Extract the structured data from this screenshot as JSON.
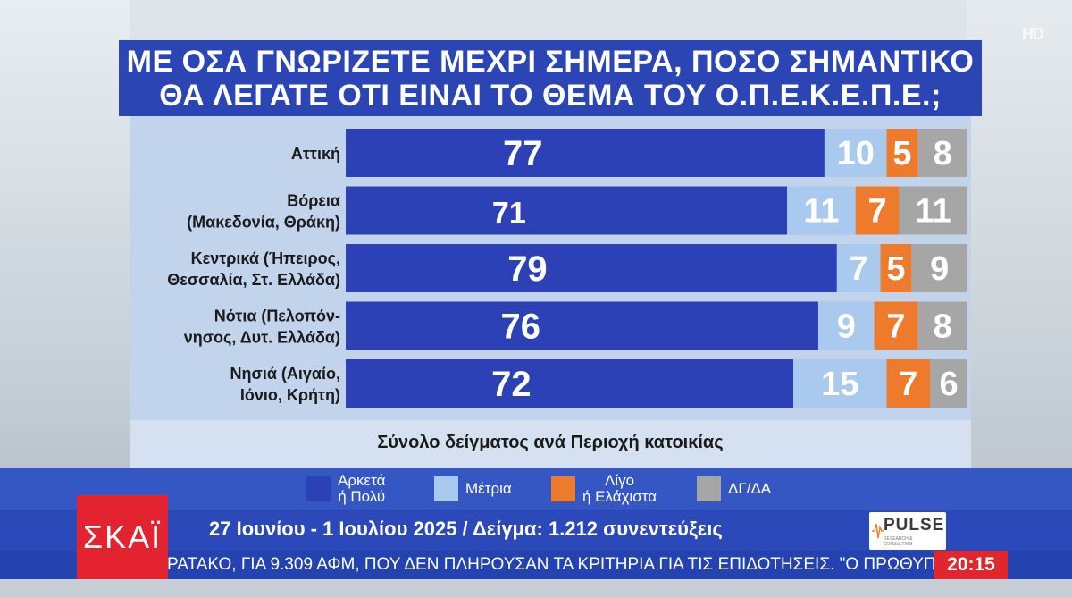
{
  "title_lines": [
    "ΜΕ ΟΣΑ ΓΝΩΡΙΖΕΤΕ ΜΕΧΡΙ ΣΗΜΕΡΑ, ΠΟΣΟ ΣΗΜΑΝΤΙΚΟ",
    "ΘΑ ΛΕΓΑΤΕ ΟΤΙ ΕΙΝΑΙ ΤΟ ΘΕΜΑ ΤΟΥ Ο.Π.Ε.Κ.Ε.Π.Ε.;"
  ],
  "hd_badge": "HD",
  "chart_data": {
    "type": "bar",
    "orientation": "horizontal",
    "stacked": true,
    "title": "ΜΕ ΟΣΑ ΓΝΩΡΙΖΕΤΕ ΜΕΧΡΙ ΣΗΜΕΡΑ, ΠΟΣΟ ΣΗΜΑΝΤΙΚΟ ΘΑ ΛΕΓΑΤΕ ΟΤΙ ΕΙΝΑΙ ΤΟ ΘΕΜΑ ΤΟΥ Ο.Π.Ε.Κ.Ε.Π.Ε.;",
    "subtitle": "Σύνολο δείγματος ανά Περιοχή κατοικίας",
    "categories": [
      [
        "Αττική"
      ],
      [
        "Βόρεια",
        "(Μακεδονία, Θράκη)"
      ],
      [
        "Κεντρικά (Ήπειρος,",
        "Θεσσαλία, Στ. Ελλάδα)"
      ],
      [
        "Νότια (Πελοπόν-",
        "νησος, Δυτ. Ελλάδα)"
      ],
      [
        "Νησιά (Αιγαίο,",
        "Ιόνιο, Κρήτη)"
      ]
    ],
    "series": [
      {
        "name": "Αρκετά ή Πολύ",
        "color": "#2b41b5",
        "text_color": "#ffffff",
        "values": [
          77,
          71,
          79,
          76,
          72
        ]
      },
      {
        "name": "Μέτρια",
        "color": "#a9caee",
        "text_color": "#ffffff",
        "values": [
          10,
          11,
          7,
          9,
          15
        ]
      },
      {
        "name": "Λίγο ή Ελάχιστα",
        "color": "#ee7a2c",
        "text_color": "#ffffff",
        "values": [
          5,
          7,
          5,
          7,
          7
        ]
      },
      {
        "name": "ΔΓ/ΔΑ",
        "color": "#a6a6a6",
        "text_color": "#ffffff",
        "values": [
          8,
          11,
          9,
          8,
          6
        ]
      }
    ],
    "xlim": [
      0,
      100
    ],
    "grid": false,
    "legend": "bottom"
  },
  "legend": [
    {
      "lines": [
        "Αρκετά",
        "ή Πολύ"
      ],
      "color": "#2b41b5"
    },
    {
      "lines": [
        "Μέτρια"
      ],
      "color": "#a9caee"
    },
    {
      "lines": [
        "Λίγο",
        "ή Ελάχιστα"
      ],
      "color": "#ee7a2c"
    },
    {
      "lines": [
        "ΔΓ/ΔΑ"
      ],
      "color": "#a6a6a6"
    }
  ],
  "info_line": "27 Ιουνίου - 1 Ιουλίου 2025 / Δείγμα: 1.212 συνεντεύξεις",
  "pulse_logo": {
    "word": "PULSE",
    "sub": "RESEARCH & CONSULTING"
  },
  "ticker": "ΡΑΤΑΚΟ, ΓΙΑ 9.309 ΑΦΜ, ΠΟΥ ΔΕΝ ΠΛΗΡΟΥΣΑΝ ΤΑ ΚΡΙΤΗΡΙΑ ΓΙΑ ΤΙΣ ΕΠΙΔΟΤΗΣΕΙΣ. \"Ο ΠΡΩΘΥΠ",
  "clock": "20:15",
  "channel_logo": "ΣΚΑΪ"
}
